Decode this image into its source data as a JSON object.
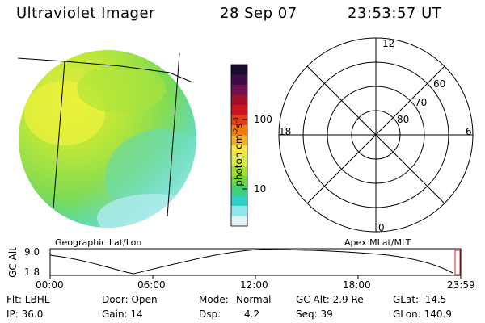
{
  "header": {
    "instrument": "Ultraviolet Imager",
    "date": "28 Sep 07",
    "time": "23:53:57 UT"
  },
  "image_panel": {
    "label": "Geographic Lat/Lon"
  },
  "colorbar": {
    "unit_label": "photon cm",
    "unit_sup1": "-2",
    "unit_s": "s",
    "unit_sup2": "-1",
    "tick_100": "100",
    "tick_10": "10",
    "colors": [
      "#1a0a2e",
      "#3d0a4a",
      "#70104f",
      "#a0102a",
      "#c8141e",
      "#e83a10",
      "#f27a0a",
      "#f6b21a",
      "#f7e34a",
      "#dce84a",
      "#a6e02d",
      "#6fd640",
      "#3fd07a",
      "#2fcfc7",
      "#8ee5ec",
      "#dff3f5"
    ]
  },
  "polar_plot": {
    "label": "Apex MLat/MLT",
    "mlt_12": "12",
    "mlt_18": "18",
    "mlt_6": "6",
    "mlt_0": "0",
    "lat_60": "60",
    "lat_70": "70",
    "lat_80": "80"
  },
  "timeline": {
    "axis_title": "GC Alt",
    "y_top": "9.0",
    "y_bottom": "1.8",
    "x_ticks": [
      "00:00",
      "06:00",
      "12:00",
      "18:00",
      "23:59"
    ]
  },
  "status": {
    "flt": "Flt: LBHL",
    "ip": "IP: 36.0",
    "door": "Door: Open",
    "gain": "Gain: 14",
    "mode_label": "Mode:",
    "mode_value": "Normal",
    "dsp_label": "Dsp:",
    "dsp_value": "4.2",
    "gcalt": "GC Alt: 2.9 Re",
    "seq": "Seq: 39",
    "glat": "GLat:  14.5",
    "glon": "GLon: 140.9"
  }
}
